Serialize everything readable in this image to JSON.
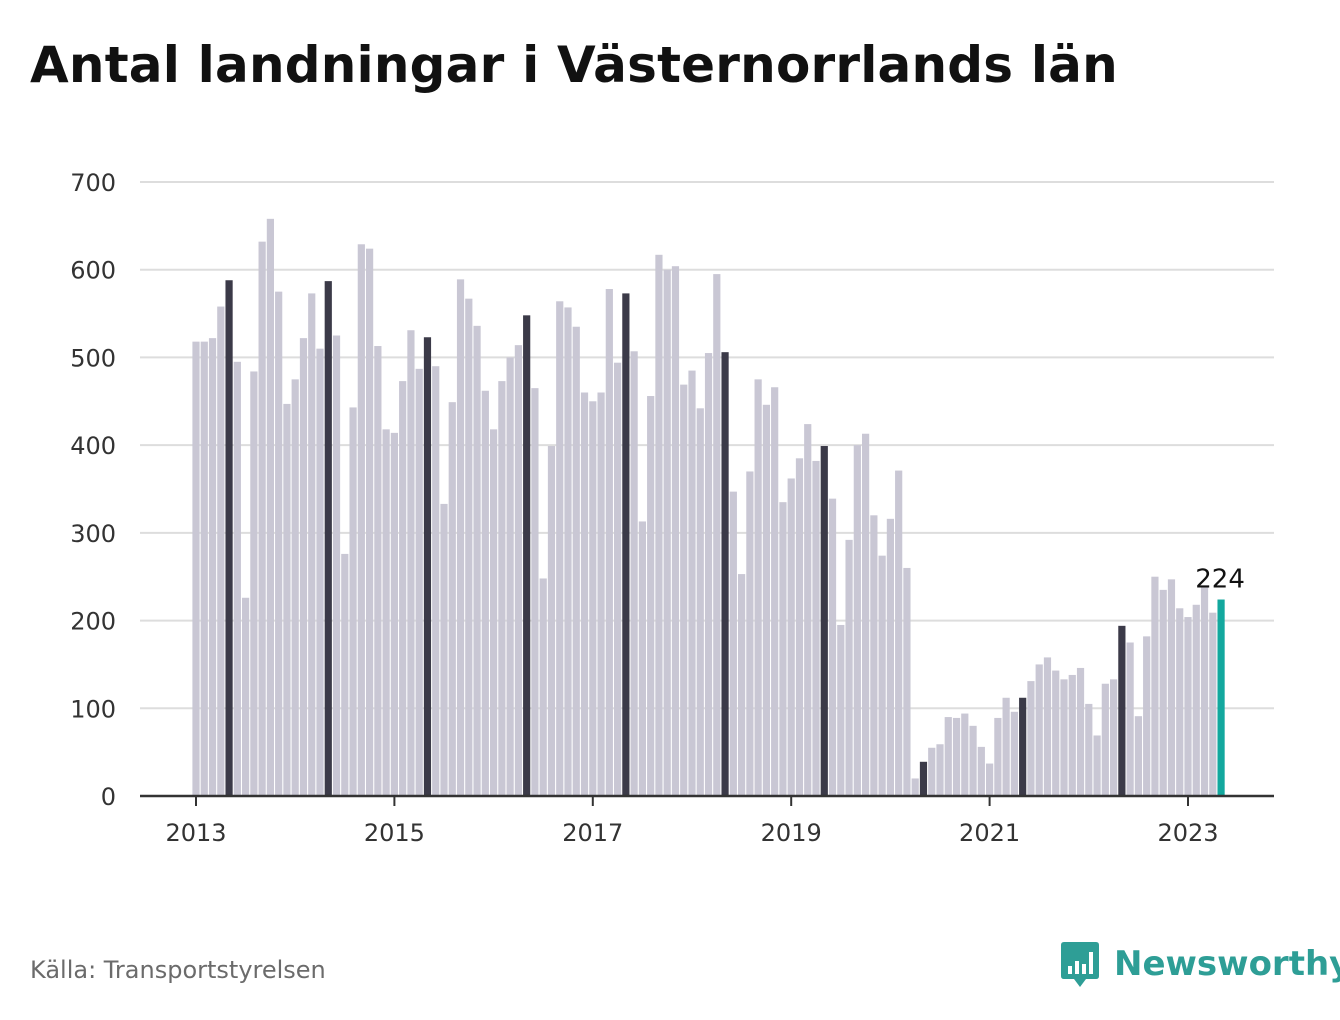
{
  "title": "Antal landningar i Västernorrlands län",
  "source": "Källa: Transportstyrelsen",
  "brand": {
    "name": "Newsworthy",
    "icon": "newsworthy-logo-icon",
    "color": "#2e9e96"
  },
  "colors": {
    "bar": "#c9c7d4",
    "highlight": "#3b3a48",
    "latest": "#13a89e",
    "grid": "#dddddd",
    "axis": "#333333"
  },
  "chart_data": {
    "type": "bar",
    "title": "Antal landningar i Västernorrlands län",
    "xlabel": "",
    "ylabel": "",
    "ylim": [
      0,
      700
    ],
    "yticks": [
      0,
      100,
      200,
      300,
      400,
      500,
      600,
      700
    ],
    "x_tick_labels": [
      "2013",
      "2015",
      "2017",
      "2019",
      "2021",
      "2023"
    ],
    "grid": true,
    "start": "2013-01",
    "frequency": "monthly",
    "values": [
      518,
      518,
      522,
      558,
      588,
      495,
      226,
      484,
      632,
      658,
      575,
      447,
      475,
      522,
      573,
      510,
      587,
      525,
      276,
      443,
      629,
      624,
      513,
      418,
      414,
      473,
      531,
      487,
      523,
      490,
      333,
      449,
      589,
      567,
      536,
      462,
      418,
      473,
      500,
      514,
      548,
      465,
      248,
      399,
      564,
      557,
      535,
      460,
      450,
      460,
      578,
      494,
      573,
      507,
      313,
      456,
      617,
      600,
      604,
      469,
      485,
      442,
      505,
      595,
      506,
      347,
      253,
      370,
      475,
      446,
      466,
      335,
      362,
      385,
      424,
      382,
      399,
      339,
      195,
      292,
      400,
      413,
      320,
      274,
      316,
      371,
      260,
      20,
      39,
      55,
      59,
      90,
      89,
      94,
      80,
      56,
      37,
      89,
      112,
      96,
      112,
      131,
      150,
      158,
      143,
      133,
      138,
      146,
      105,
      69,
      128,
      133,
      194,
      175,
      91,
      182,
      250,
      235,
      247,
      214,
      204,
      218,
      238,
      209,
      224
    ],
    "highlight_months": "May",
    "annotations": [
      {
        "label": "224",
        "index": 124
      }
    ]
  }
}
